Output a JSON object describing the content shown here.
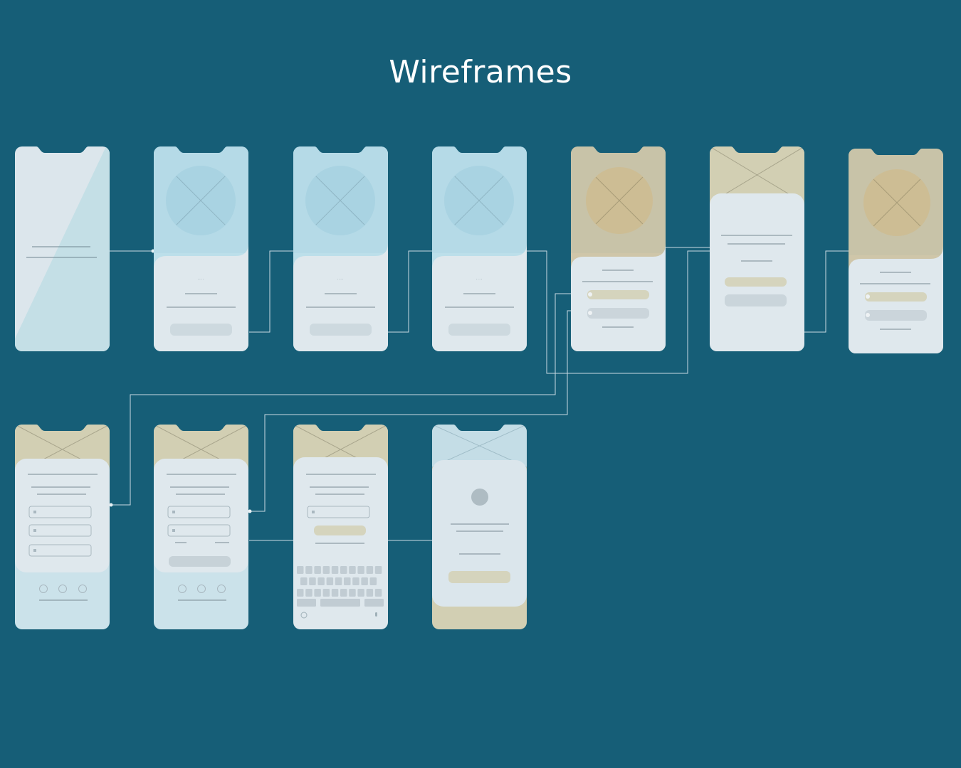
{
  "title": "Wireframes",
  "colors": {
    "background": "#165e77",
    "screen": "#dbe6ec",
    "accent_blue": "#a9d3e2",
    "accent_sand": "#d2cfb3",
    "accent_gold": "#cdbd94",
    "line": "#c9dbe3",
    "placeholder_gray": "#c9d4da"
  },
  "screens": [
    {
      "id": "s1",
      "kind": "splash"
    },
    {
      "id": "s2",
      "kind": "onboarding-blue"
    },
    {
      "id": "s3",
      "kind": "onboarding-blue"
    },
    {
      "id": "s4",
      "kind": "onboarding-blue"
    },
    {
      "id": "s5",
      "kind": "options-gold"
    },
    {
      "id": "s6",
      "kind": "banner-sand"
    },
    {
      "id": "s7",
      "kind": "options-gold"
    },
    {
      "id": "s8",
      "kind": "form-three-fields"
    },
    {
      "id": "s9",
      "kind": "form-two-fields"
    },
    {
      "id": "s10",
      "kind": "keyboard-entry"
    },
    {
      "id": "s11",
      "kind": "profile-confirm"
    }
  ]
}
